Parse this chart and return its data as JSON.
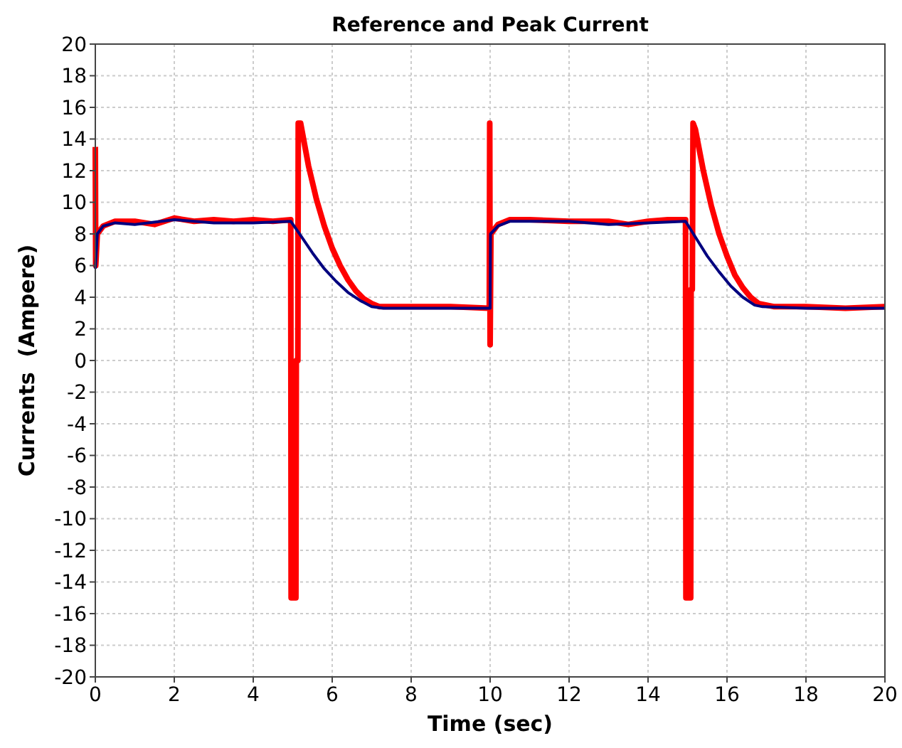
{
  "chart_data": {
    "type": "line",
    "title": "Reference and Peak Current",
    "xlabel": "Time (sec)",
    "ylabel": "Currents  (Ampere)",
    "xlim": [
      0,
      20
    ],
    "xticks": [
      0,
      2,
      4,
      6,
      8,
      10,
      12,
      14,
      16,
      18,
      20
    ],
    "ylim": [
      -20,
      20
    ],
    "yticks": [
      -20,
      -18,
      -16,
      -14,
      -12,
      -10,
      -8,
      -6,
      -4,
      -2,
      0,
      2,
      4,
      6,
      8,
      10,
      12,
      14,
      16,
      18,
      20
    ],
    "grid": true,
    "series": [
      {
        "color": "#ff0000",
        "x": [
          0,
          0.01,
          0.05,
          0.2,
          0.5,
          1,
          1.5,
          2,
          2.5,
          3,
          3.5,
          4,
          4.5,
          4.95,
          4.96,
          5.08,
          5.09,
          5.13,
          5.14,
          5.2,
          5.4,
          5.6,
          5.8,
          6.0,
          6.2,
          6.4,
          6.6,
          6.8,
          7.0,
          7.2,
          8,
          9,
          9.98,
          9.99,
          10.0,
          10.02,
          10.2,
          10.5,
          11,
          12,
          13,
          13.5,
          14,
          14.5,
          14.95,
          14.96,
          15.08,
          15.09,
          15.12,
          15.14,
          15.2,
          15.4,
          15.6,
          15.8,
          16.0,
          16.2,
          16.4,
          16.6,
          16.8,
          17.0,
          17.2,
          18,
          19,
          20
        ],
        "values": [
          13.5,
          6,
          8,
          8.5,
          8.8,
          8.8,
          8.6,
          9.0,
          8.8,
          8.9,
          8.8,
          8.9,
          8.8,
          8.9,
          -15,
          -15,
          0,
          0,
          15,
          15,
          12.3,
          10.2,
          8.5,
          7.1,
          6.0,
          5.1,
          4.4,
          3.9,
          3.6,
          3.4,
          3.4,
          3.4,
          3.3,
          15,
          1,
          8,
          8.6,
          8.9,
          8.9,
          8.8,
          8.8,
          8.6,
          8.8,
          8.9,
          8.9,
          -15,
          -15,
          4.5,
          4.5,
          15,
          14.6,
          12,
          9.8,
          8.0,
          6.6,
          5.4,
          4.6,
          4.0,
          3.6,
          3.5,
          3.4,
          3.4,
          3.3,
          3.4
        ]
      },
      {
        "color": "#00007f",
        "x": [
          0,
          0.05,
          0.2,
          0.5,
          1,
          2,
          3,
          4,
          4.95,
          5.2,
          5.5,
          5.8,
          6.1,
          6.4,
          6.7,
          7,
          7.3,
          8,
          9,
          10,
          10.01,
          10.2,
          10.5,
          12,
          13,
          14,
          14.95,
          15.2,
          15.5,
          15.8,
          16.1,
          16.4,
          16.7,
          16.9,
          18,
          20
        ],
        "values": [
          5.8,
          8,
          8.5,
          8.7,
          8.6,
          8.9,
          8.7,
          8.7,
          8.8,
          7.9,
          6.8,
          5.8,
          5.0,
          4.3,
          3.8,
          3.4,
          3.3,
          3.3,
          3.3,
          3.3,
          8,
          8.5,
          8.8,
          8.8,
          8.6,
          8.7,
          8.8,
          7.8,
          6.6,
          5.6,
          4.7,
          4.0,
          3.5,
          3.4,
          3.3,
          3.3
        ]
      }
    ]
  }
}
